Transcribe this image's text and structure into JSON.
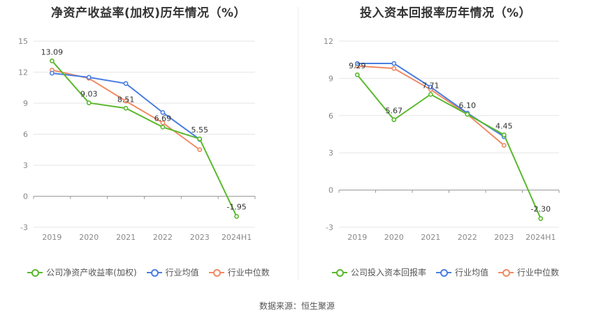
{
  "source_text": "数据来源：恒生聚源",
  "chart_data": [
    {
      "type": "line",
      "title": "净资产收益率(加权)历年情况（%）",
      "categories": [
        "2019",
        "2020",
        "2021",
        "2022",
        "2023",
        "2024H1"
      ],
      "ylim": [
        -3,
        15
      ],
      "yticks": [
        -3,
        0,
        3,
        6,
        9,
        12,
        15
      ],
      "grid": true,
      "legend_position": "bottom",
      "series": [
        {
          "name": "公司净资产收益率(加权)",
          "color": "#5ab92d",
          "values": [
            13.09,
            9.03,
            8.51,
            6.69,
            5.55,
            -1.95
          ],
          "labels": [
            "13.09",
            "9.03",
            "8.51",
            "6.69",
            "5.55",
            "-1.95"
          ]
        },
        {
          "name": "行业均值",
          "color": "#4a7ee0",
          "values": [
            11.9,
            11.5,
            10.9,
            8.1,
            5.5,
            null
          ]
        },
        {
          "name": "行业中位数",
          "color": "#f08a64",
          "values": [
            12.2,
            11.4,
            9.2,
            7.1,
            4.5,
            null
          ]
        }
      ]
    },
    {
      "type": "line",
      "title": "投入资本回报率历年情况（%）",
      "categories": [
        "2019",
        "2020",
        "2021",
        "2022",
        "2023",
        "2024H1"
      ],
      "ylim": [
        -3,
        12
      ],
      "yticks": [
        -3,
        0,
        3,
        6,
        9,
        12
      ],
      "grid": true,
      "legend_position": "bottom",
      "series": [
        {
          "name": "公司投入资本回报率",
          "color": "#5ab92d",
          "values": [
            9.29,
            5.67,
            7.71,
            6.1,
            4.45,
            -2.3
          ],
          "labels": [
            "9.29",
            "5.67",
            "7.71",
            "6.10",
            "4.45",
            "-2.30"
          ]
        },
        {
          "name": "行业均值",
          "color": "#4a7ee0",
          "values": [
            10.2,
            10.2,
            8.3,
            6.2,
            4.3,
            null
          ]
        },
        {
          "name": "行业中位数",
          "color": "#f08a64",
          "values": [
            10.0,
            9.8,
            8.1,
            6.1,
            3.6,
            null
          ]
        }
      ]
    }
  ]
}
